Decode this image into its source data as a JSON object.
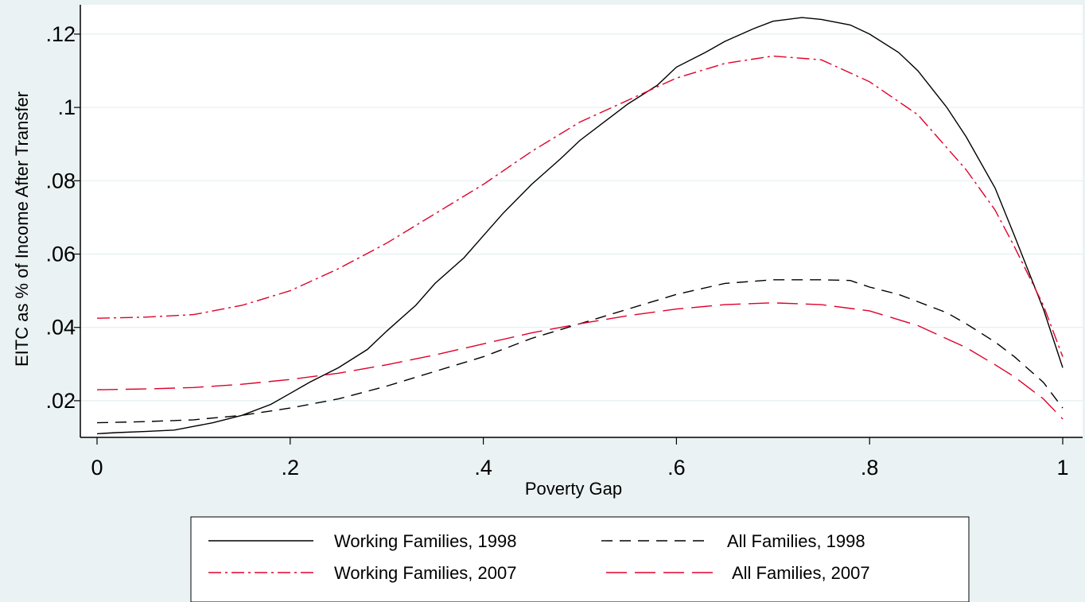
{
  "chart_data": {
    "type": "line",
    "title": "",
    "xlabel": "Poverty Gap",
    "ylabel": "EITC as % of Income After Transfer",
    "xlim": [
      0,
      1
    ],
    "ylim": [
      0.01,
      0.128
    ],
    "x_ticks": [
      0,
      0.2,
      0.4,
      0.6,
      0.8,
      1
    ],
    "x_tick_labels": [
      "0",
      ".2",
      ".4",
      ".6",
      ".8",
      "1"
    ],
    "y_ticks": [
      0.02,
      0.04,
      0.06,
      0.08,
      0.1,
      0.12
    ],
    "y_tick_labels": [
      ".02",
      ".04",
      ".06",
      ".08",
      ".1",
      ".12"
    ],
    "grid": "horizontal",
    "legend_position": "bottom",
    "series": [
      {
        "name": "Working Families, 1998",
        "color": "#000000",
        "dash": "solid",
        "x": [
          0,
          0.02,
          0.05,
          0.08,
          0.1,
          0.12,
          0.15,
          0.18,
          0.2,
          0.22,
          0.25,
          0.28,
          0.3,
          0.33,
          0.35,
          0.38,
          0.4,
          0.42,
          0.45,
          0.48,
          0.5,
          0.53,
          0.55,
          0.58,
          0.6,
          0.63,
          0.65,
          0.68,
          0.7,
          0.73,
          0.75,
          0.78,
          0.8,
          0.83,
          0.85,
          0.88,
          0.9,
          0.93,
          0.95,
          0.98,
          1.0
        ],
        "y": [
          0.011,
          0.0113,
          0.0116,
          0.012,
          0.013,
          0.014,
          0.016,
          0.019,
          0.022,
          0.025,
          0.029,
          0.034,
          0.039,
          0.046,
          0.052,
          0.059,
          0.065,
          0.071,
          0.079,
          0.086,
          0.091,
          0.097,
          0.101,
          0.106,
          0.111,
          0.115,
          0.118,
          0.1215,
          0.1235,
          0.1245,
          0.124,
          0.1225,
          0.12,
          0.115,
          0.11,
          0.1,
          0.092,
          0.078,
          0.065,
          0.045,
          0.029
        ]
      },
      {
        "name": "All Families, 1998",
        "color": "#000000",
        "dash": "dashed",
        "x": [
          0,
          0.05,
          0.1,
          0.15,
          0.2,
          0.25,
          0.3,
          0.35,
          0.4,
          0.45,
          0.5,
          0.55,
          0.6,
          0.65,
          0.7,
          0.75,
          0.78,
          0.8,
          0.83,
          0.85,
          0.88,
          0.9,
          0.93,
          0.95,
          0.98,
          1.0
        ],
        "y": [
          0.014,
          0.0143,
          0.0148,
          0.016,
          0.018,
          0.0205,
          0.024,
          0.028,
          0.032,
          0.037,
          0.041,
          0.045,
          0.049,
          0.052,
          0.053,
          0.053,
          0.0528,
          0.051,
          0.049,
          0.047,
          0.044,
          0.041,
          0.036,
          0.032,
          0.025,
          0.018
        ]
      },
      {
        "name": "Working Families, 2007",
        "color": "#e0002a",
        "dash": "dashdot",
        "x": [
          0,
          0.05,
          0.1,
          0.15,
          0.2,
          0.25,
          0.3,
          0.35,
          0.4,
          0.45,
          0.5,
          0.55,
          0.6,
          0.65,
          0.7,
          0.75,
          0.8,
          0.85,
          0.9,
          0.93,
          0.95,
          0.98,
          1.0
        ],
        "y": [
          0.0425,
          0.0428,
          0.0435,
          0.046,
          0.05,
          0.056,
          0.063,
          0.071,
          0.079,
          0.088,
          0.096,
          0.102,
          0.108,
          0.112,
          0.114,
          0.113,
          0.107,
          0.098,
          0.083,
          0.072,
          0.062,
          0.046,
          0.032
        ]
      },
      {
        "name": "All Families, 2007",
        "color": "#e0002a",
        "dash": "longdash",
        "x": [
          0,
          0.05,
          0.1,
          0.15,
          0.2,
          0.25,
          0.3,
          0.35,
          0.4,
          0.45,
          0.5,
          0.55,
          0.6,
          0.65,
          0.7,
          0.75,
          0.8,
          0.85,
          0.9,
          0.93,
          0.95,
          0.98,
          1.0
        ],
        "y": [
          0.023,
          0.0232,
          0.0236,
          0.0245,
          0.0258,
          0.0275,
          0.0298,
          0.0325,
          0.0355,
          0.0385,
          0.041,
          0.0432,
          0.045,
          0.0462,
          0.0467,
          0.0462,
          0.0445,
          0.0405,
          0.0345,
          0.0298,
          0.0265,
          0.0205,
          0.015
        ]
      }
    ]
  }
}
